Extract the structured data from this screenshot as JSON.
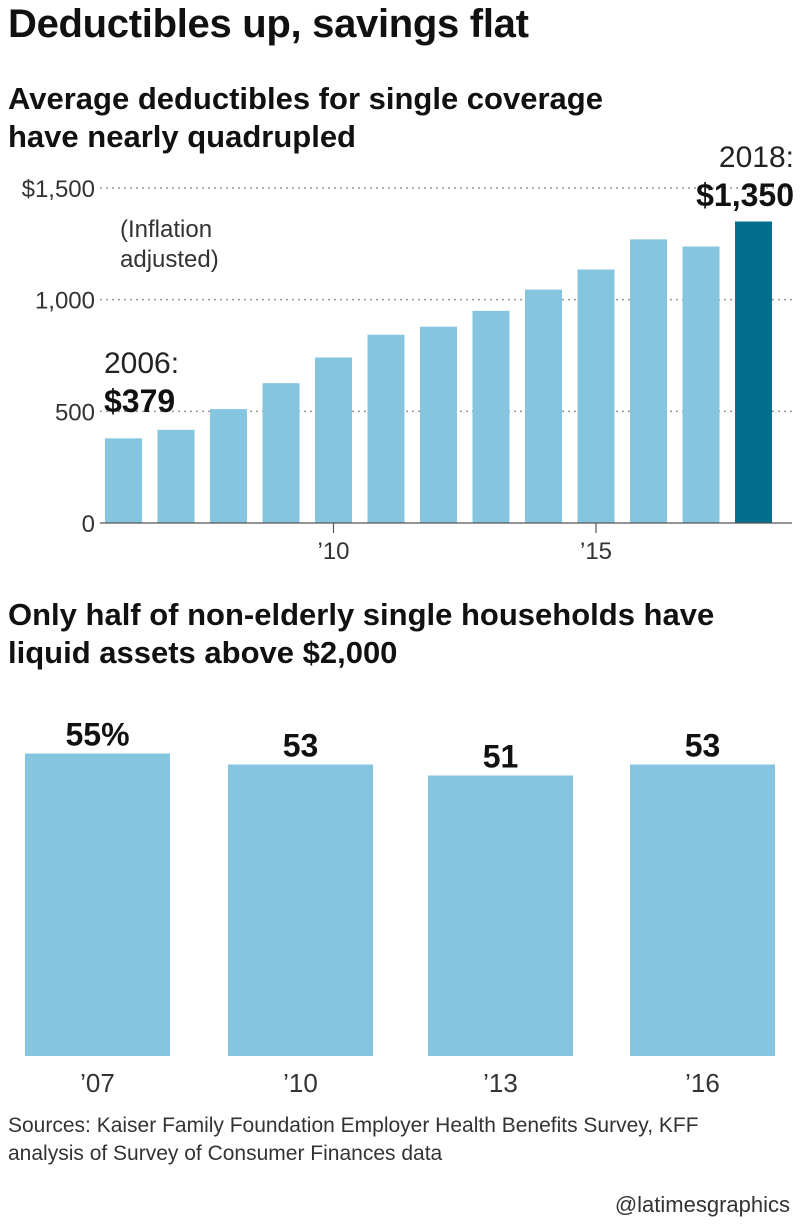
{
  "title": "Deductibles up, savings flat",
  "chart1_subtitle": "Average deductibles for single coverage have nearly quadrupled",
  "chart2_subtitle": "Only half of non-elderly single households have liquid assets above $2,000",
  "source": "Sources: Kaiser Family Foundation Employer Health Benefits Survey, KFF analysis of Survey of Consumer Finances data",
  "credit": "@latimesgraphics",
  "colors": {
    "bar": "#86c5e0",
    "highlight": "#006e8c",
    "grid": "#999999"
  },
  "chart_data": [
    {
      "type": "bar",
      "title": "Average deductibles for single coverage have nearly quadrupled",
      "note": "(Inflation adjusted)",
      "x": [
        2006,
        2007,
        2008,
        2009,
        2010,
        2011,
        2012,
        2013,
        2014,
        2015,
        2016,
        2017,
        2018
      ],
      "values": [
        379,
        417,
        510,
        626,
        741,
        843,
        879,
        950,
        1045,
        1135,
        1270,
        1238,
        1350
      ],
      "ylim": [
        0,
        1500
      ],
      "yticks": [
        {
          "value": 1500,
          "label": "$1,500"
        },
        {
          "value": 1000,
          "label": "1,000"
        },
        {
          "value": 500,
          "label": "500"
        },
        {
          "value": 0,
          "label": "0"
        }
      ],
      "xticks": [
        {
          "x": 2010,
          "label": "’10"
        },
        {
          "x": 2015,
          "label": "’15"
        }
      ],
      "grid": true,
      "highlight_index": 12,
      "annotations": [
        {
          "year_label": "2006:",
          "value_label": "$379"
        },
        {
          "year_label": "2018:",
          "value_label": "$1,350"
        }
      ]
    },
    {
      "type": "bar",
      "title": "Only half of non-elderly single households have liquid assets above $2,000",
      "categories": [
        "’07",
        "’10",
        "’13",
        "’16"
      ],
      "values": [
        55,
        53,
        51,
        53
      ],
      "data_labels": [
        "55%",
        "53",
        "51",
        "53"
      ],
      "unit": "%"
    }
  ]
}
